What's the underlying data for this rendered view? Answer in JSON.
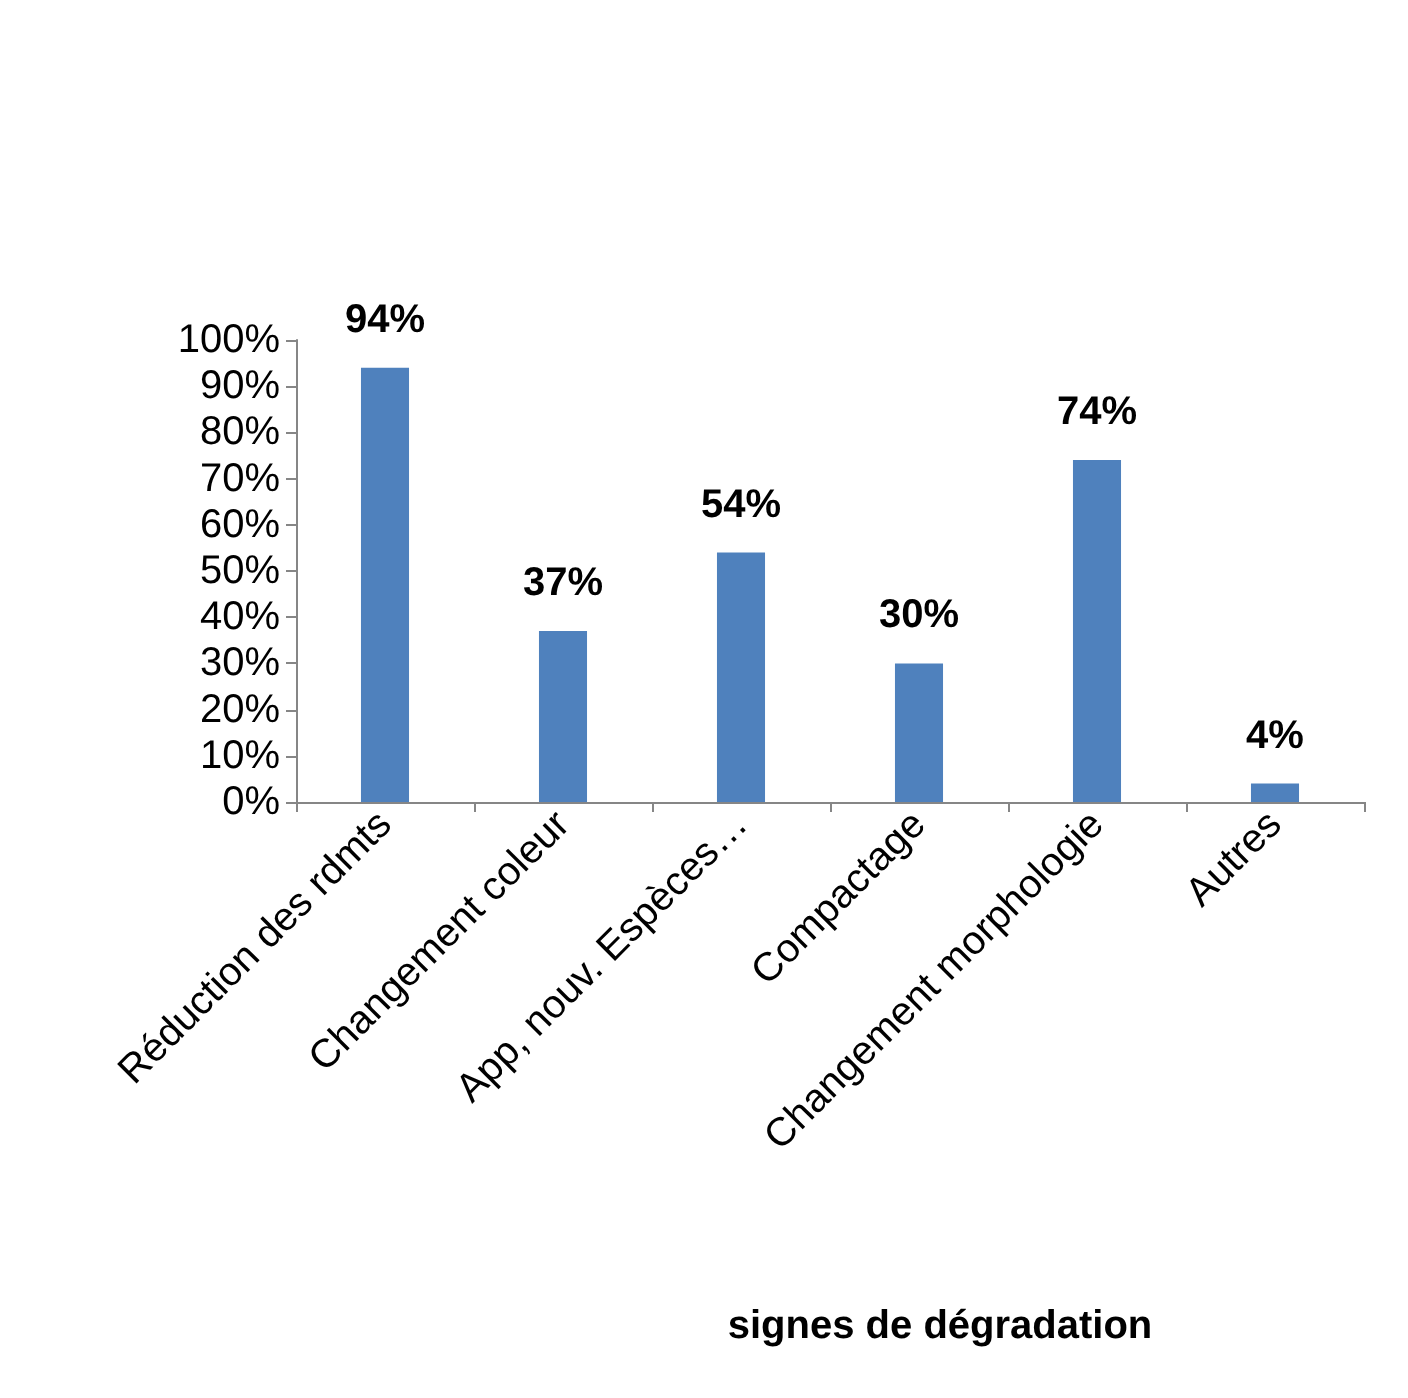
{
  "chart_data": {
    "type": "bar",
    "xlabel": "signes de dégradation",
    "categories": [
      "Réduction des rdmts",
      "Changement coleur",
      "App, nouv. Espèces…",
      "Compactage",
      "Changement morphologie",
      "Autres"
    ],
    "values": [
      94,
      37,
      54,
      30,
      74,
      4
    ],
    "value_labels": [
      "94%",
      "37%",
      "54%",
      "30%",
      "74%",
      "4%"
    ],
    "color": "#4f81bd",
    "ylim": [
      0,
      100
    ],
    "yticks": [
      {
        "value": 0,
        "label": "0%"
      },
      {
        "value": 10,
        "label": "10%"
      },
      {
        "value": 20,
        "label": "20%"
      },
      {
        "value": 30,
        "label": "30%"
      },
      {
        "value": 40,
        "label": "40%"
      },
      {
        "value": 50,
        "label": "50%"
      },
      {
        "value": 60,
        "label": "60%"
      },
      {
        "value": 70,
        "label": "70%"
      },
      {
        "value": 80,
        "label": "80%"
      },
      {
        "value": 90,
        "label": "90%"
      },
      {
        "value": 100,
        "label": "100%"
      }
    ]
  }
}
